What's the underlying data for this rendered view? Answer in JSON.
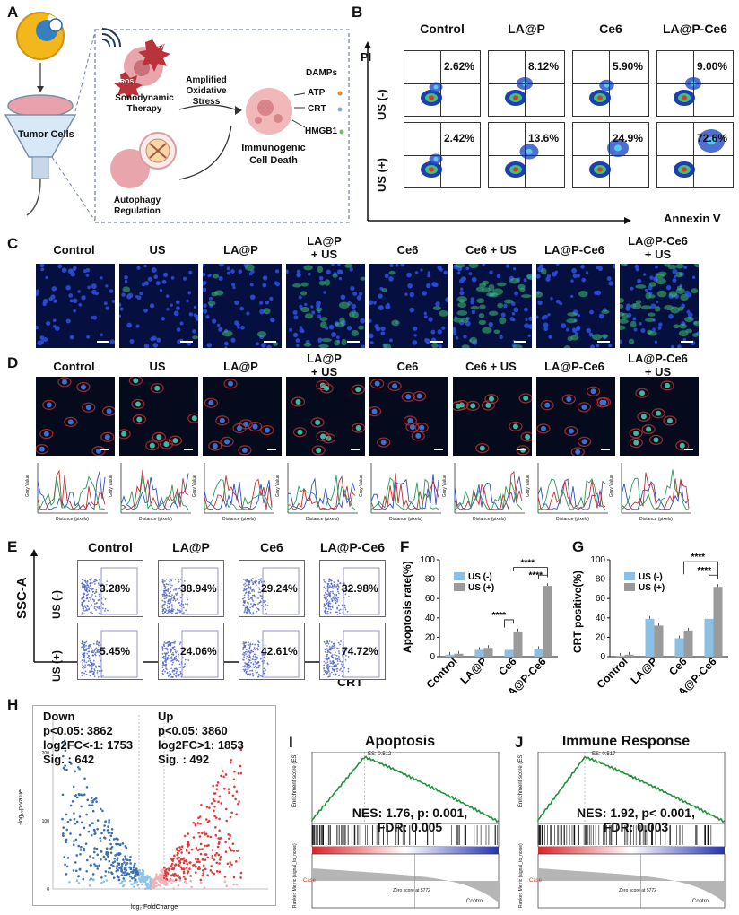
{
  "panels": {
    "A": "A",
    "B": "B",
    "C": "C",
    "D": "D",
    "E": "E",
    "F": "F",
    "G": "G",
    "H": "H",
    "I": "I",
    "J": "J"
  },
  "panelA": {
    "tumor_cells": "Tumor Cells",
    "ros1": "ROS",
    "ros2": "ROS",
    "sonodynamic": "Sonodynamic",
    "therapy": "Therapy",
    "amplified": "Amplified",
    "oxidative": "Oxidative",
    "stress": "Stress",
    "damps": "DAMPs",
    "atp": "ATP",
    "crt": "CRT",
    "hmgb1": "HMGB1",
    "immunogenic": "Immunogenic",
    "cell_death": "Cell Death",
    "autophagy": "Autophagy",
    "regulation": "Regulation",
    "colors": {
      "atp": "#e58a3a",
      "crt": "#7fb2e0",
      "hmgb1": "#6cbf5a",
      "ros": "#c0392b"
    }
  },
  "panelB": {
    "columns": [
      "Control",
      "LA@P",
      "Ce6",
      "LA@P-Ce6"
    ],
    "rows": [
      "US (-)",
      "US (+)"
    ],
    "values": [
      [
        "2.62%",
        "8.12%",
        "5.90%",
        "9.00%"
      ],
      [
        "2.42%",
        "13.6%",
        "24.9%",
        "72.6%"
      ]
    ],
    "y_axis": "PI",
    "x_axis": "Annexin V"
  },
  "panelC": {
    "columns": [
      "Control",
      "US",
      "LA@P",
      "LA@P",
      "Ce6",
      "Ce6 + US",
      "LA@P-Ce6",
      "LA@P-Ce6"
    ],
    "columns2": [
      "",
      "",
      "",
      "+ US",
      "",
      "",
      "",
      "+ US"
    ]
  },
  "panelD": {
    "columns": [
      "Control",
      "US",
      "LA@P",
      "LA@P",
      "Ce6",
      "Ce6 + US",
      "LA@P-Ce6",
      "LA@P-Ce6"
    ],
    "columns2": [
      "",
      "",
      "",
      "+ US",
      "",
      "",
      "",
      "+ US"
    ],
    "plot_ylabel": "Gray Value",
    "plot_xlabel": "Distance (pixels)"
  },
  "panelE": {
    "columns": [
      "Control",
      "LA@P",
      "Ce6",
      "LA@P-Ce6"
    ],
    "rows": [
      "US (-)",
      "US (+)"
    ],
    "values": [
      [
        "3.28%",
        "38.94%",
        "29.24%",
        "32.98%"
      ],
      [
        "5.45%",
        "24.06%",
        "42.61%",
        "74.72%"
      ]
    ],
    "y_axis": "SSC-A",
    "x_axis": "CRT"
  },
  "panelH": {
    "down": "Down",
    "down_p": "p<0.05: 3862",
    "down_fc": "log2FC<-1: 1753",
    "down_sig": "Sig. : 642",
    "up": "Up",
    "up_p": "p<0.05: 3860",
    "up_fc": "log2FC>1: 1853",
    "up_sig": "Sig. : 492",
    "ylabel": "-log₁₀p-value",
    "xlabel": "log₂ FoldChange"
  },
  "panelI": {
    "title": "Apoptosis",
    "nes1": "NES: 1.76, p: 0.001,",
    "nes2": "FDR: 0.005",
    "es_label": "ES: 0.512",
    "ylabel": "Enrichment score (ES)",
    "rank_label": "Ranked Metric (signal_to_noise)",
    "case": "Case",
    "control": "Control",
    "zero": "Zero score at 5772"
  },
  "panelJ": {
    "title": "Immune Response",
    "nes1": "NES: 1.92, p< 0.001,",
    "nes2": "FDR: 0.003",
    "es_label": "ES: 0.517",
    "ylabel": "Enrichment score (ES)",
    "rank_label": "Ranked Metric (signal_to_noise)",
    "case": "Case",
    "control": "Control",
    "zero": "Zero score at 5772"
  },
  "chart_data": [
    {
      "type": "bar",
      "panel": "F",
      "categories": [
        "Control",
        "LA@P",
        "Ce6",
        "LA@P-Ce6"
      ],
      "series": [
        {
          "name": "US (-)",
          "values": [
            2,
            7,
            7,
            8
          ],
          "color": "#8bbfe3"
        },
        {
          "name": "US (+)",
          "values": [
            3,
            9,
            26,
            73
          ],
          "color": "#9a9a9a"
        }
      ],
      "ylabel": "Apoptosis rate(%)",
      "ylim": [
        0,
        100
      ],
      "yticks": [
        0,
        20,
        40,
        60,
        80,
        100
      ],
      "significance": [
        "****",
        "****",
        "****"
      ]
    },
    {
      "type": "bar",
      "panel": "G",
      "categories": [
        "Control",
        "LA@P",
        "Ce6",
        "LA@P-Ce6"
      ],
      "series": [
        {
          "name": "US (-)",
          "values": [
            1,
            39,
            19,
            39
          ],
          "color": "#8bbfe3"
        },
        {
          "name": "US (+)",
          "values": [
            2,
            32,
            27,
            72
          ],
          "color": "#9a9a9a"
        }
      ],
      "ylabel": "CRT positive(%)",
      "ylim": [
        0,
        100
      ],
      "yticks": [
        0,
        20,
        40,
        60,
        80,
        100
      ],
      "significance": [
        "****",
        "****"
      ]
    }
  ]
}
